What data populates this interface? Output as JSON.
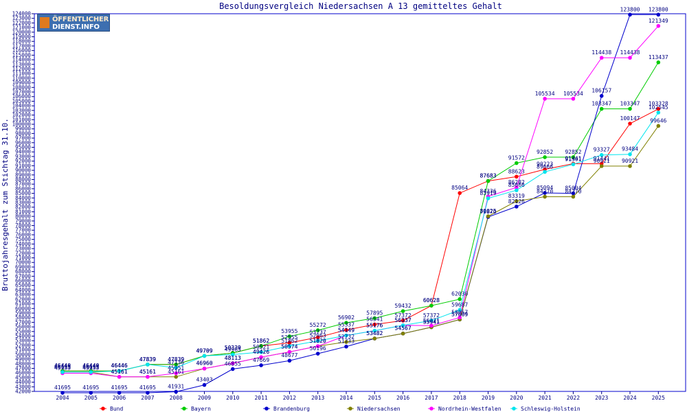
{
  "chart_data": {
    "type": "line",
    "title": "Besoldungsvergleich Niedersachsen A 13 gemitteltes Gehalt",
    "ylabel": "Bruttojahresgehalt zum Stichtag 31.10.",
    "xlabel": "",
    "ylim": [
      42000,
      124000
    ],
    "ytick_step": 1000,
    "grid": false,
    "legend_position": "bottom",
    "categories": [
      "2004",
      "2005",
      "2006",
      "2007",
      "2008",
      "2009",
      "2010",
      "2011",
      "2012",
      "2013",
      "2014",
      "2015",
      "2016",
      "2017",
      "2018",
      "2019",
      "2020",
      "2021",
      "2022",
      "2023",
      "2024",
      "2025"
    ],
    "series": [
      {
        "name": "Bund",
        "color": "#ff0000",
        "values": [
          46440,
          46440,
          46446,
          47839,
          47839,
          49709,
          50339,
          51862,
          52555,
          53737,
          55337,
          56541,
          57372,
          60628,
          85064,
          87683,
          88623,
          90223,
          91441,
          91441,
          100147,
          103328
        ]
      },
      {
        "name": "Bayern",
        "color": "#00cc00",
        "values": [
          46440,
          46440,
          46446,
          47839,
          47839,
          49709,
          50339,
          51862,
          53955,
          55272,
          56902,
          57895,
          59432,
          60628,
          62030,
          87683,
          91572,
          92852,
          92852,
          103347,
          103347,
          113437
        ]
      },
      {
        "name": "Brandenburg",
        "color": "#0000cc",
        "values": [
          41695,
          41695,
          41695,
          41695,
          41931,
          43403,
          46855,
          47669,
          48677,
          50196,
          51733,
          53482,
          54567,
          55941,
          57609,
          79870,
          82126,
          85094,
          85004,
          106157,
          123800,
          123800
        ]
      },
      {
        "name": "Niedersachsen",
        "color": "#808000",
        "values": [
          46195,
          46195,
          45161,
          45161,
          45161,
          46960,
          48113,
          49426,
          50574,
          51820,
          52732,
          53482,
          54567,
          55941,
          57609,
          80025,
          83319,
          84270,
          84270,
          90921,
          90921,
          99646
        ]
      },
      {
        "name": "Nordrhein-Westfalen",
        "color": "#ff00ff",
        "values": [
          45955,
          45955,
          45161,
          45161,
          45951,
          46960,
          48113,
          49426,
          50574,
          51820,
          54149,
          55176,
          56337,
          56271,
          58057,
          84336,
          86282,
          105534,
          105534,
          114438,
          114438,
          121349
        ]
      },
      {
        "name": "Schleswig-Holstein",
        "color": "#00e5ee",
        "values": [
          46195,
          46195,
          46446,
          47839,
          47136,
          49709,
          49985,
          50521,
          51862,
          52963,
          54149,
          55176,
          56337,
          57372,
          59687,
          83919,
          85666,
          89666,
          91301,
          93327,
          93484,
          102545
        ]
      }
    ],
    "point_labels": {
      "Bund": [
        "46440",
        "46440",
        "46446",
        "47839",
        "47839",
        "49709",
        "50339",
        "51862",
        "52555",
        "53737",
        "55337",
        "56541",
        "57372",
        "60628",
        "85064",
        "87683",
        "88623",
        "90223",
        "91441",
        "91441",
        "100147",
        "103328"
      ],
      "Bayern": [
        "46440",
        "46440",
        "46446",
        "47839",
        "47839",
        "49709",
        "50339",
        "51862",
        "53955",
        "55272",
        "56902",
        "57895",
        "59432",
        "60628",
        "62030",
        "87683",
        "91572",
        "92852",
        "92852",
        "103347",
        "103347",
        "113437"
      ],
      "Brandenburg": [
        "41695",
        "41695",
        "41695",
        "41695",
        "41931",
        "43403",
        "46855",
        "47669",
        "48677",
        "50196",
        "51733",
        "53482",
        "54567",
        "55941",
        "57609",
        "79870",
        "82126",
        "85094",
        "85004",
        "106157",
        "123800",
        "123800"
      ],
      "Niedersachsen": [
        "46195",
        "46195",
        "45161",
        "45161",
        "45161",
        "46960",
        "48113",
        "49426",
        "50574",
        "51820",
        "52732",
        "53482",
        "54567",
        "55941",
        "57609",
        "80025",
        "83319",
        "84270",
        "84270",
        "90921",
        "90921",
        "99646"
      ],
      "Nordrhein-Westfalen": [
        "45955",
        "45955",
        "45161",
        "45161",
        "45951",
        "46960",
        "48113",
        "49426",
        "50574",
        "51820",
        "54149",
        "55176",
        "56337",
        "56271",
        "58057",
        "84336",
        "86282",
        "105534",
        "105534",
        "114438",
        "114438",
        "121349"
      ],
      "Schleswig-Holstein": [
        "46195",
        "46195",
        "46446",
        "47839",
        "47136",
        "49709",
        "49985",
        "50521",
        "51862",
        "52963",
        "54149",
        "55176",
        "56337",
        "57372",
        "59687",
        "83919",
        "85666",
        "89666",
        "91301",
        "93327",
        "93484",
        "102545"
      ]
    },
    "x_axis_color": "#0000cc",
    "frame_color": "#0000cc"
  },
  "logo": {
    "line1": "ÖFFENTLICHER",
    "line2": "DIENST.INFO"
  }
}
